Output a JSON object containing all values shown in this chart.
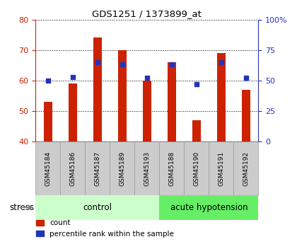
{
  "title": "GDS1251 / 1373899_at",
  "samples": [
    "GSM45184",
    "GSM45186",
    "GSM45187",
    "GSM45189",
    "GSM45193",
    "GSM45188",
    "GSM45190",
    "GSM45191",
    "GSM45192"
  ],
  "counts": [
    53,
    59,
    74,
    70,
    60,
    66,
    47,
    69,
    57
  ],
  "percentiles": [
    50,
    53,
    65,
    63,
    52,
    63,
    47,
    65,
    52
  ],
  "ylim_left": [
    40,
    80
  ],
  "ylim_right": [
    0,
    100
  ],
  "yticks_left": [
    40,
    50,
    60,
    70,
    80
  ],
  "yticks_right": [
    0,
    25,
    50,
    75,
    100
  ],
  "ytick_labels_right": [
    "0",
    "25",
    "50",
    "75",
    "100%"
  ],
  "bar_color": "#cc2200",
  "dot_color": "#2233bb",
  "label_bg_color": "#cccccc",
  "label_edge_color": "#999999",
  "control_bg_color": "#ccffcc",
  "acute_bg_color": "#66ee66",
  "bar_width": 0.35,
  "legend_count_label": "count",
  "legend_pct_label": "percentile rank within the sample",
  "stress_label": "stress",
  "n_control": 5,
  "n_acute": 4
}
